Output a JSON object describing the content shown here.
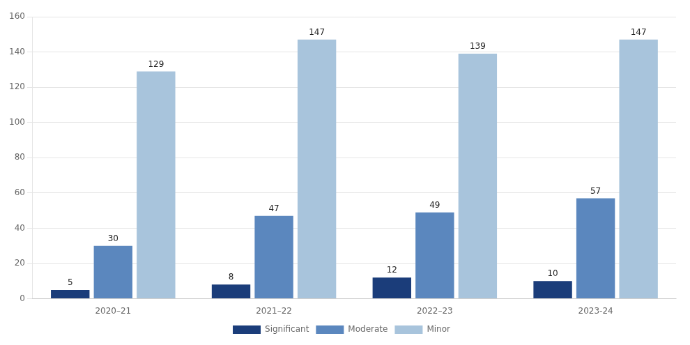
{
  "chart_data": {
    "type": "bar",
    "categories": [
      "2020–21",
      "2021–22",
      "2022–23",
      "2023-24"
    ],
    "series": [
      {
        "name": "Significant",
        "color": "#1b3d7a",
        "values": [
          5,
          8,
          12,
          10
        ]
      },
      {
        "name": "Moderate",
        "color": "#5b87be",
        "values": [
          30,
          47,
          49,
          57
        ]
      },
      {
        "name": "Minor",
        "color": "#a8c4dc",
        "values": [
          129,
          147,
          139,
          147
        ]
      }
    ],
    "ylim": [
      0,
      160
    ],
    "yticks": [
      0,
      20,
      40,
      60,
      80,
      100,
      120,
      140,
      160
    ],
    "grid": true,
    "legend": "bottom",
    "data_labels": true
  }
}
